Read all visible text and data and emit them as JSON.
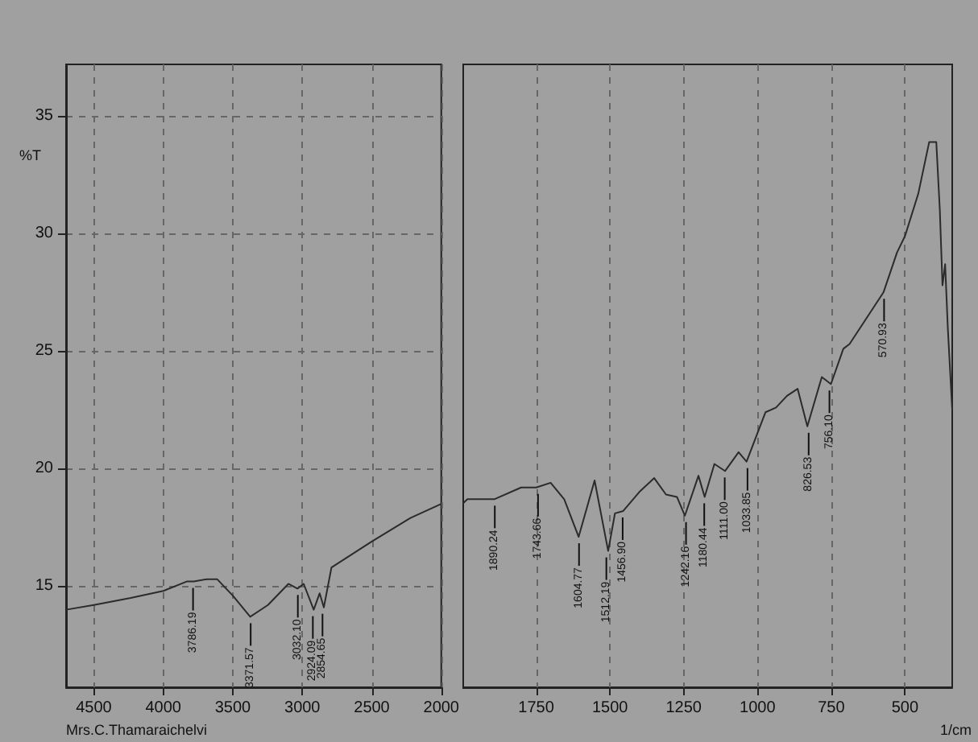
{
  "chart_data": [
    {
      "type": "line",
      "ylabel": "%T",
      "xlim": [
        4700,
        2000
      ],
      "ylim": [
        10.7,
        37.2
      ],
      "xticks": [
        4500,
        4000,
        3500,
        3000,
        2500,
        2000
      ],
      "yticks": [
        15,
        20,
        25,
        30,
        35
      ],
      "grid": true,
      "tick_labels": "xy",
      "series": [
        {
          "color": "#2b2b2b",
          "x": [
            4700,
            4500,
            4235,
            4000,
            3832,
            3780,
            3686,
            3613,
            3500,
            3375,
            3247,
            3100,
            3035,
            2990,
            2918,
            2875,
            2845,
            2790,
            2500,
            2222,
            2000
          ],
          "values": [
            14.0,
            14.2,
            14.5,
            14.8,
            15.2,
            15.2,
            15.3,
            15.3,
            14.6,
            13.7,
            14.2,
            15.1,
            14.9,
            15.1,
            14.0,
            14.7,
            14.1,
            15.8,
            16.9,
            17.9,
            18.5
          ]
        }
      ],
      "annotations": [
        {
          "text": "3786.19",
          "x": 3786.19,
          "y": 15.2
        },
        {
          "text": "3371.57",
          "x": 3371.57,
          "y": 13.7
        },
        {
          "text": "3032.10",
          "x": 3032.1,
          "y": 14.9
        },
        {
          "text": "2924.09",
          "x": 2924.09,
          "y": 14.0
        },
        {
          "text": "2854.65",
          "x": 2854.65,
          "y": 14.1
        },
        "Mrs.C.Thamaraichelvi"
      ]
    },
    {
      "type": "line",
      "xlabel": "1/cm",
      "xlim": [
        2000,
        340
      ],
      "ylim": [
        10.7,
        37.2
      ],
      "xticks": [
        1750,
        1500,
        1250,
        1000,
        750,
        500
      ],
      "grid": true,
      "tick_labels": "x",
      "series": [
        {
          "color": "#2b2b2b",
          "x": [
            2000,
            1983,
            1892,
            1801,
            1750,
            1701,
            1655,
            1606,
            1552,
            1506,
            1483,
            1455,
            1401,
            1350,
            1310,
            1273,
            1246,
            1200,
            1179,
            1146,
            1110,
            1064,
            1037,
            973,
            937,
            900,
            864,
            831,
            782,
            751,
            709,
            688,
            573,
            527,
            500,
            455,
            418,
            394,
            382,
            373,
            364,
            355,
            340
          ],
          "values": [
            18.5,
            18.7,
            18.7,
            19.2,
            19.2,
            19.4,
            18.7,
            17.1,
            19.5,
            16.5,
            18.1,
            18.2,
            19.0,
            19.6,
            18.9,
            18.8,
            18.0,
            19.7,
            18.8,
            20.2,
            19.9,
            20.7,
            20.3,
            22.4,
            22.6,
            23.1,
            23.4,
            21.8,
            23.9,
            23.6,
            25.1,
            25.3,
            27.5,
            29.2,
            29.9,
            31.7,
            33.9,
            33.9,
            31.0,
            27.8,
            28.7,
            26.0,
            22.5
          ]
        }
      ],
      "annotations": [
        {
          "text": "1890.24",
          "x": 1890.24,
          "y": 18.7
        },
        {
          "text": "1743.66",
          "x": 1743.66,
          "y": 19.2
        },
        {
          "text": "1604.77",
          "x": 1604.77,
          "y": 17.1
        },
        {
          "text": "1512.19",
          "x": 1512.19,
          "y": 16.5
        },
        {
          "text": "1456.90",
          "x": 1456.9,
          "y": 18.2
        },
        {
          "text": "1242.16",
          "x": 1242.16,
          "y": 18.0
        },
        {
          "text": "1180.44",
          "x": 1180.44,
          "y": 18.8
        },
        {
          "text": "1111.00",
          "x": 1111.0,
          "y": 19.9
        },
        {
          "text": "1033.85",
          "x": 1033.85,
          "y": 20.3
        },
        {
          "text": "826.53",
          "x": 826.53,
          "y": 21.8
        },
        {
          "text": "756.10",
          "x": 756.1,
          "y": 23.6
        },
        {
          "text": "570.93",
          "x": 570.93,
          "y": 27.5
        }
      ]
    }
  ]
}
